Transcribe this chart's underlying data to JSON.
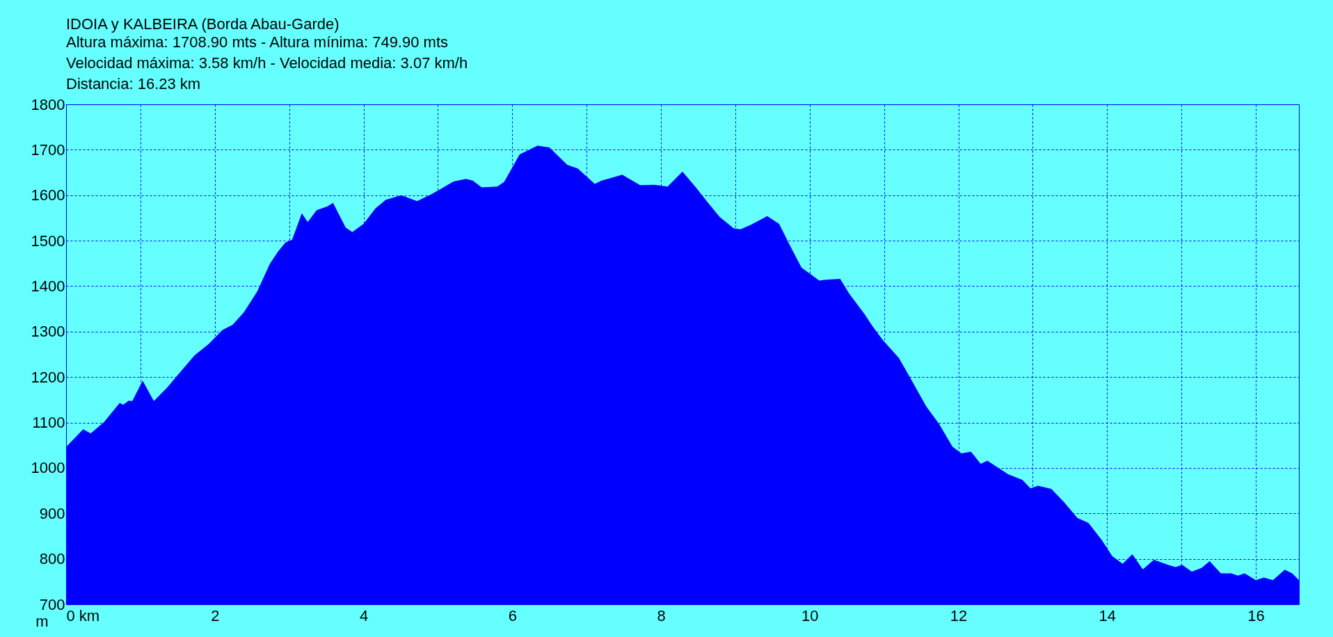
{
  "chart_data": {
    "type": "area",
    "title": "IDOIA y KALBEIRA (Borda Abau-Garde)",
    "subtitle": "Altura máxima: 1708.90 mts - Altura mínima: 749.90 mts",
    "annotations": [
      "Velocidad máxima: 3.58 km/h - Velocidad media: 3.07 km/h",
      "Distancia: 16.23 km"
    ],
    "ylabel": "m",
    "color": "#0000ff",
    "grid": true,
    "x": [
      0,
      0.23,
      0.33,
      0.51,
      0.72,
      0.77,
      0.84,
      0.89,
      1.03,
      1.18,
      1.36,
      1.5,
      1.73,
      1.92,
      2.1,
      2.24,
      2.39,
      2.57,
      2.74,
      2.85,
      2.95,
      3.04,
      3.17,
      3.25,
      3.37,
      3.51,
      3.59,
      3.76,
      3.85,
      4,
      4.16,
      4.3,
      4.51,
      4.72,
      4.91,
      5.03,
      5.21,
      5.38,
      5.47,
      5.59,
      5.8,
      5.89,
      6.1,
      6.34,
      6.5,
      6.74,
      6.88,
      7.11,
      7.2,
      7.48,
      7.72,
      7.91,
      8.09,
      8.29,
      8.47,
      8.61,
      8.79,
      8.98,
      9.07,
      9.21,
      9.43,
      9.59,
      9.73,
      9.89,
      10.13,
      10.22,
      10.41,
      10.53,
      10.74,
      10.85,
      10.99,
      11.2,
      11.36,
      11.57,
      11.74,
      11.92,
      12.04,
      12.17,
      12.3,
      12.39,
      12.67,
      12.86,
      12.97,
      13.07,
      13.25,
      13.42,
      13.6,
      13.75,
      13.93,
      14.07,
      14.21,
      14.34,
      14.48,
      14.63,
      14.82,
      14.92,
      15.01,
      15.14,
      15.27,
      15.38,
      15.53,
      15.67,
      15.76,
      15.85,
      16,
      16.11,
      16.23,
      16.39,
      16.49,
      16.58
    ],
    "values": [
      1046,
      1085,
      1076,
      1101,
      1143,
      1139,
      1148,
      1147,
      1192,
      1147,
      1177,
      1204,
      1248,
      1273,
      1303,
      1315,
      1342,
      1388,
      1449,
      1476,
      1496,
      1502,
      1560,
      1541,
      1567,
      1575,
      1583,
      1529,
      1519,
      1537,
      1571,
      1590,
      1600,
      1587,
      1602,
      1613,
      1630,
      1636,
      1632,
      1617,
      1619,
      1629,
      1690,
      1709,
      1705,
      1667,
      1659,
      1625,
      1632,
      1645,
      1622,
      1623,
      1619,
      1652,
      1617,
      1588,
      1552,
      1527,
      1525,
      1535,
      1554,
      1537,
      1491,
      1441,
      1412,
      1414,
      1416,
      1384,
      1338,
      1311,
      1280,
      1242,
      1196,
      1135,
      1097,
      1047,
      1032,
      1036,
      1009,
      1016,
      986,
      974,
      955,
      961,
      954,
      925,
      890,
      879,
      841,
      806,
      789,
      810,
      777,
      798,
      787,
      782,
      787,
      772,
      780,
      795,
      768,
      768,
      763,
      768,
      753,
      759,
      753,
      776,
      768,
      753
    ],
    "xlim": [
      0,
      16.58
    ],
    "ylim": [
      700,
      1800
    ],
    "xticks": [
      {
        "value": 0,
        "label": "0 km"
      },
      {
        "value": 1,
        "label": null
      },
      2,
      {
        "value": 3,
        "label": null
      },
      4,
      {
        "value": 5,
        "label": null
      },
      6,
      {
        "value": 7,
        "label": null
      },
      8,
      {
        "value": 9,
        "label": null
      },
      10,
      {
        "value": 11,
        "label": null
      },
      12,
      {
        "value": 13,
        "label": null
      },
      14,
      {
        "value": 15,
        "label": null
      },
      16
    ],
    "yticks": [
      700,
      800,
      900,
      1000,
      1100,
      1200,
      1300,
      1400,
      1500,
      1600,
      1700,
      1800
    ]
  }
}
